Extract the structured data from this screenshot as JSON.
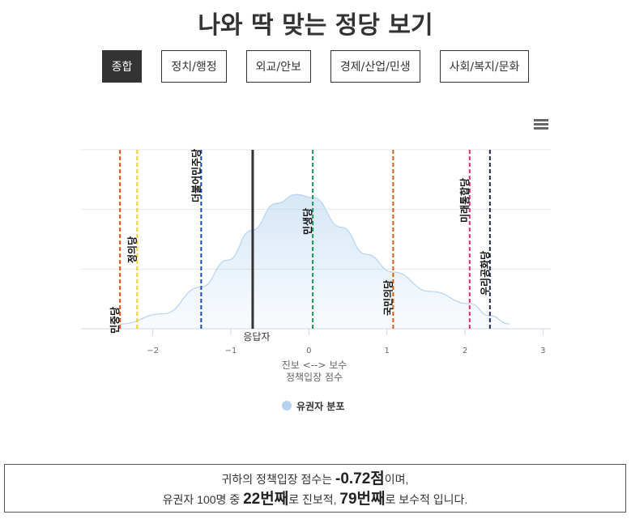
{
  "title": "나와 딱 맞는 정당 보기",
  "tabs": [
    {
      "label": "종합",
      "active": true
    },
    {
      "label": "정치/행정"
    },
    {
      "label": "외교/안보"
    },
    {
      "label": "경제/산업/민생"
    },
    {
      "label": "사회/복지/문화"
    }
  ],
  "menu_icon": "hamburger-icon",
  "chart_data": {
    "type": "area",
    "xlabel_line1": "진보 <--> 보수",
    "xlabel_line2": "정책입장 점수",
    "xlim": [
      -2.92,
      3.1
    ],
    "xticks": [
      -2,
      -1,
      0,
      1,
      2,
      3
    ],
    "xtick_labels": [
      "−2",
      "−1",
      "0",
      "1",
      "2",
      "3"
    ],
    "grid": true,
    "legend_placement": "bottom",
    "series": [
      {
        "name": "유권자 분포",
        "color": "#b5d3ef",
        "x": [
          -2.42,
          -1.87,
          -1.38,
          -1.04,
          -0.73,
          -0.42,
          -0.16,
          0.05,
          0.42,
          0.73,
          1.08,
          1.56,
          2.06,
          2.32,
          2.57
        ],
        "y": [
          0.016,
          0.05,
          0.14,
          0.23,
          0.33,
          0.42,
          0.45,
          0.44,
          0.34,
          0.25,
          0.19,
          0.125,
          0.084,
          0.043,
          0.016
        ]
      }
    ],
    "ylim": [
      0,
      0.6
    ],
    "respondent": {
      "label": "응답자",
      "x": -0.72,
      "color": "#333333"
    },
    "parties": [
      {
        "name": "민중당",
        "x": -2.42,
        "color": "#e8501e"
      },
      {
        "name": "정의당",
        "x": -2.2,
        "color": "#f2d01a"
      },
      {
        "name": "더불어민주당",
        "x": -1.38,
        "color": "#1a4fa0"
      },
      {
        "name": "민생당",
        "x": 0.05,
        "color": "#1a9a50"
      },
      {
        "name": "국민의당",
        "x": 1.08,
        "color": "#c8641e"
      },
      {
        "name": "미래통합당",
        "x": 2.06,
        "color": "#e0306e"
      },
      {
        "name": "우리공화당",
        "x": 2.32,
        "color": "#1a2a5e"
      }
    ]
  },
  "result": {
    "line1_pre": "귀하의 정책입장 점수는 ",
    "score": "-0.72점",
    "line1_post": "이며,",
    "line2_pre": "유권자 100명 중 ",
    "rank_progressive": "22번째",
    "mid": "로 진보적, ",
    "rank_conservative": "79번째",
    "line2_post": "로 보수적 입니다."
  }
}
